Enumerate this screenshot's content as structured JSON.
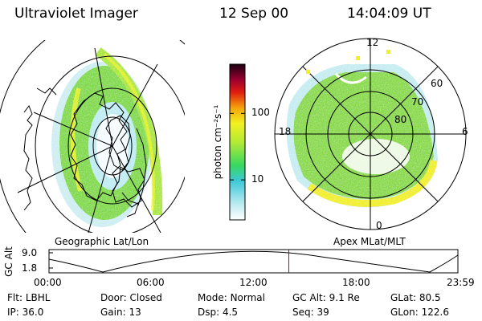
{
  "header": {
    "instrument": "Ultraviolet Imager",
    "date": "12 Sep 00",
    "time": "14:04:09 UT"
  },
  "left_panel": {
    "label": "Geographic Lat/Lon"
  },
  "right_panel": {
    "label": "Apex MLat/MLT",
    "mlt_labels": {
      "top": "12",
      "left": "18",
      "right": "6",
      "bottom": "0"
    },
    "lat_labels": [
      "60",
      "70",
      "80"
    ]
  },
  "colorbar": {
    "unit_label": "photon cm⁻²s⁻¹",
    "ticks": [
      "100",
      "10"
    ],
    "tick_values": [
      100,
      10
    ],
    "range": [
      2.5,
      550
    ],
    "scale": "log"
  },
  "altitude_plot": {
    "ylabel": "GC Alt",
    "yticks": [
      "9.0",
      "1.8"
    ],
    "xticks": [
      "00:00",
      "06:00",
      "12:00",
      "18:00",
      "23:59"
    ],
    "current_time_marker": "14:04",
    "marker_color": "#cc0000"
  },
  "info": {
    "row1": [
      {
        "k": "Flt:",
        "v": "LBHL"
      },
      {
        "k": "Door:",
        "v": "Closed"
      },
      {
        "k": "Mode:",
        "v": "Normal"
      },
      {
        "k": "GC Alt:",
        "v": "9.1 Re"
      },
      {
        "k": "GLat:",
        "v": "80.5"
      }
    ],
    "row2": [
      {
        "k": "IP:",
        "v": "36.0"
      },
      {
        "k": "Gain:",
        "v": "13"
      },
      {
        "k": "Dsp:",
        "v": "4.5"
      },
      {
        "k": "Seq:",
        "v": "39"
      },
      {
        "k": "GLon:",
        "v": "122.6"
      }
    ]
  }
}
